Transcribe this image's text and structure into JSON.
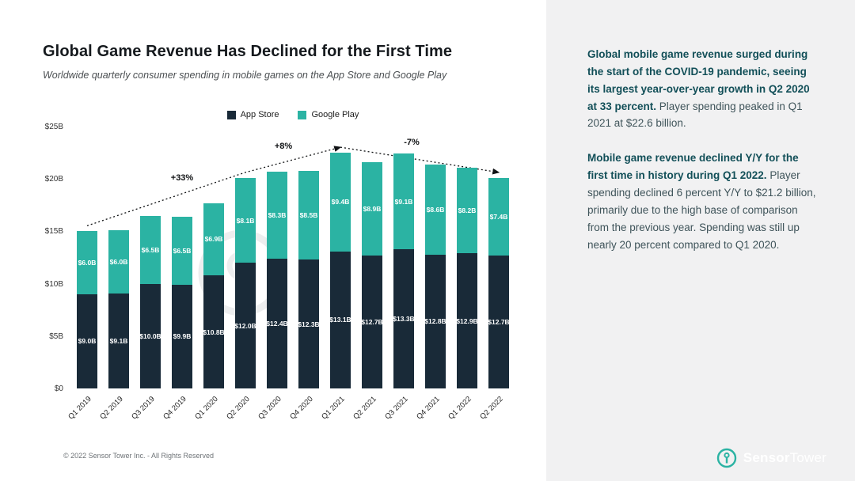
{
  "title": "Global Game Revenue Has Declined for the First Time",
  "subtitle": "Worldwide quarterly consumer spending in mobile games on the App Store and Google Play",
  "legend": {
    "items": [
      {
        "label": "App Store",
        "color": "#192a38"
      },
      {
        "label": "Google Play",
        "color": "#2bb3a3"
      }
    ]
  },
  "chart_data": {
    "type": "bar",
    "stacked": true,
    "title": "Global Game Revenue Has Declined for the First Time",
    "categories": [
      "Q1 2019",
      "Q2 2019",
      "Q3 2019",
      "Q4 2019",
      "Q1 2020",
      "Q2 2020",
      "Q3 2020",
      "Q4 2020",
      "Q1 2021",
      "Q2 2021",
      "Q3 2021",
      "Q4 2021",
      "Q1 2022",
      "Q2 2022"
    ],
    "series": [
      {
        "name": "App Store",
        "color": "#192a38",
        "values": [
          9.0,
          9.1,
          10.0,
          9.9,
          10.8,
          12.0,
          12.4,
          12.3,
          13.1,
          12.7,
          13.3,
          12.8,
          12.9,
          12.7
        ],
        "labels": [
          "$9.0B",
          "$9.1B",
          "$10.0B",
          "$9.9B",
          "$10.8B",
          "$12.0B",
          "$12.4B",
          "$12.3B",
          "$13.1B",
          "$12.7B",
          "$13.3B",
          "$12.8B",
          "$12.9B",
          "$12.7B"
        ]
      },
      {
        "name": "Google Play",
        "color": "#2bb3a3",
        "values": [
          6.0,
          6.0,
          6.5,
          6.5,
          6.9,
          8.1,
          8.3,
          8.5,
          9.4,
          8.9,
          9.1,
          8.6,
          8.2,
          7.4
        ],
        "labels": [
          "$6.0B",
          "$6.0B",
          "$6.5B",
          "$6.5B",
          "$6.9B",
          "$8.1B",
          "$8.3B",
          "$8.5B",
          "$9.4B",
          "$8.9B",
          "$9.1B",
          "$8.6B",
          "$8.2B",
          "$7.4B"
        ]
      }
    ],
    "y_ticks": [
      "$0",
      "$5B",
      "$10B",
      "$15B",
      "$20B",
      "$25B"
    ],
    "ylim": [
      0,
      25
    ],
    "grid": false,
    "legend_position": "top",
    "annotations": [
      {
        "label": "+33%",
        "x": 140
      },
      {
        "label": "+8%",
        "x": 268
      },
      {
        "label": "-7%",
        "x": 430
      }
    ]
  },
  "sidebar": {
    "paragraphs": [
      {
        "bold": "Global mobile game revenue surged during the start of the COVID-19 pandemic, seeing its largest year-over-year growth in Q2 2020 at 33 percent.",
        "normal": " Player spending peaked in Q1 2021 at $22.6 billion."
      },
      {
        "bold": "Mobile game revenue declined Y/Y for the first time in history during Q1 2022.",
        "normal": " Player spending declined 6 percent Y/Y to $21.2 billion, primarily due to the high base of comparison from the previous year. Spending was still up nearly 20 percent compared to Q1 2020."
      }
    ]
  },
  "footer": {
    "copyright": "© 2022 Sensor Tower Inc. - All Rights Reserved"
  },
  "logo": {
    "first": "Sensor",
    "second": "Tower"
  },
  "colors": {
    "app_store": "#192a38",
    "google_play": "#2bb3a3",
    "panel_bg": "#f1f1f2",
    "bold_text": "#124f58",
    "body_text": "#3f545a",
    "annotation": "#101214"
  }
}
